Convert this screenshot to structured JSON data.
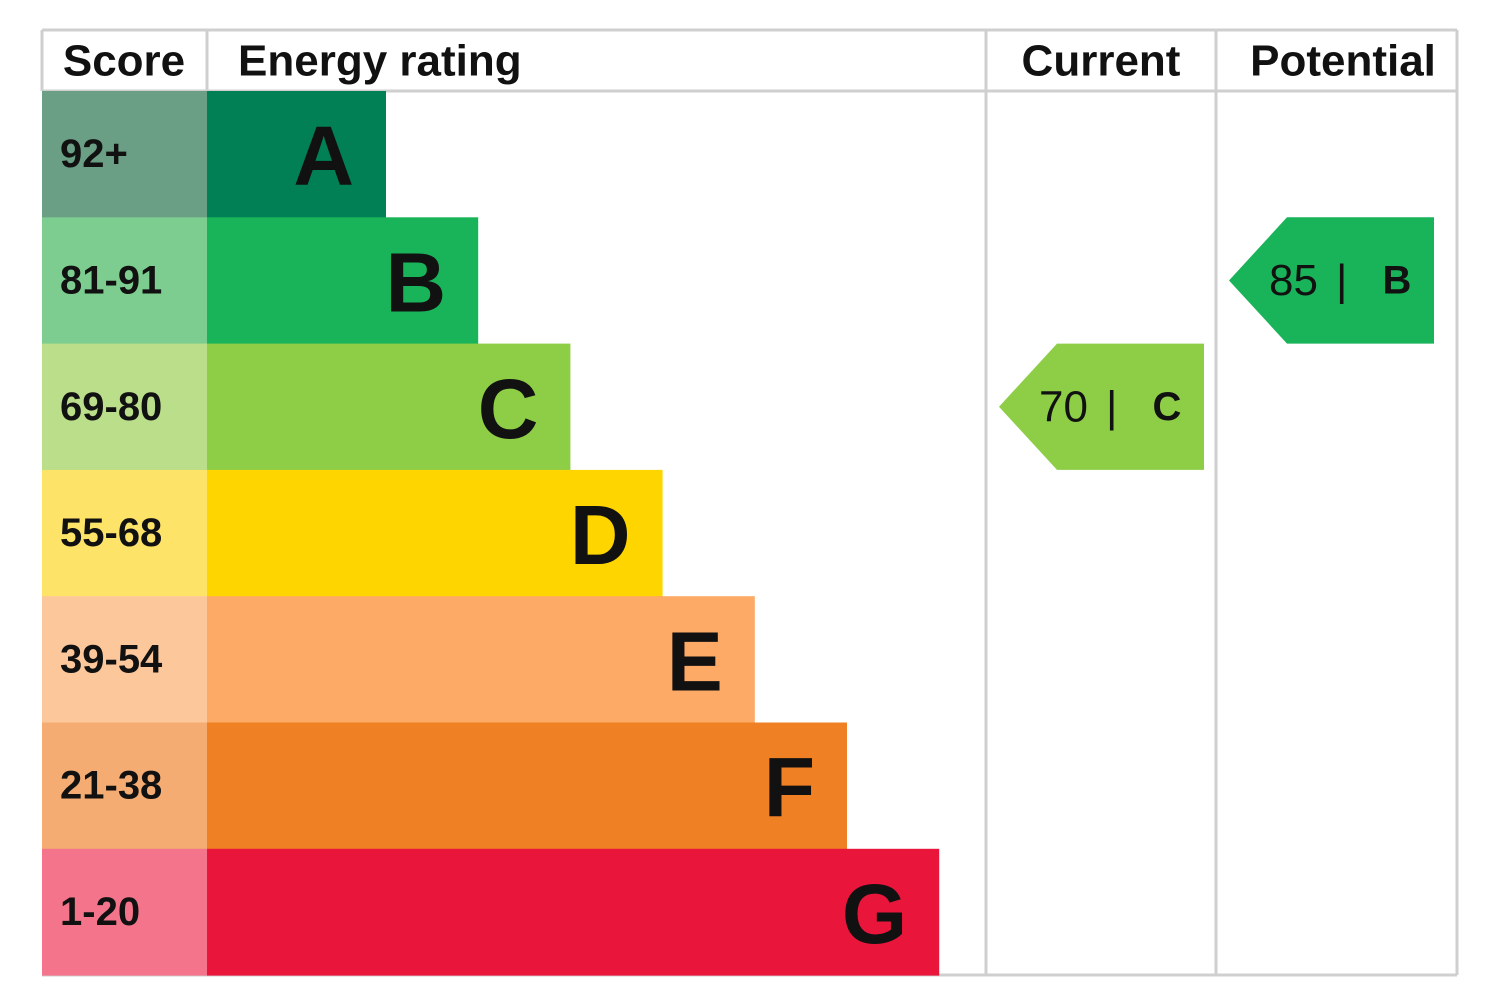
{
  "header": {
    "score": "Score",
    "rating": "Energy rating",
    "current": "Current",
    "potential": "Potential"
  },
  "bands": [
    {
      "score": "92+",
      "letter": "A",
      "color": "#008054",
      "score_color": "#6a9f85"
    },
    {
      "score": "81-91",
      "letter": "B",
      "color": "#19b459",
      "score_color": "#7ccd8f"
    },
    {
      "score": "69-80",
      "letter": "C",
      "color": "#8dce46",
      "score_color": "#bade8a"
    },
    {
      "score": "55-68",
      "letter": "D",
      "color": "#ffd500",
      "score_color": "#fde367"
    },
    {
      "score": "39-54",
      "letter": "E",
      "color": "#fcaa65",
      "score_color": "#fdc79c"
    },
    {
      "score": "21-38",
      "letter": "F",
      "color": "#ef8023",
      "score_color": "#f4ac72"
    },
    {
      "score": "1-20",
      "letter": "G",
      "color": "#e9153b",
      "score_color": "#f3748b"
    }
  ],
  "separator": "|",
  "current": {
    "value": 70,
    "letter": "C"
  },
  "potential": {
    "value": 85,
    "letter": "B"
  }
}
